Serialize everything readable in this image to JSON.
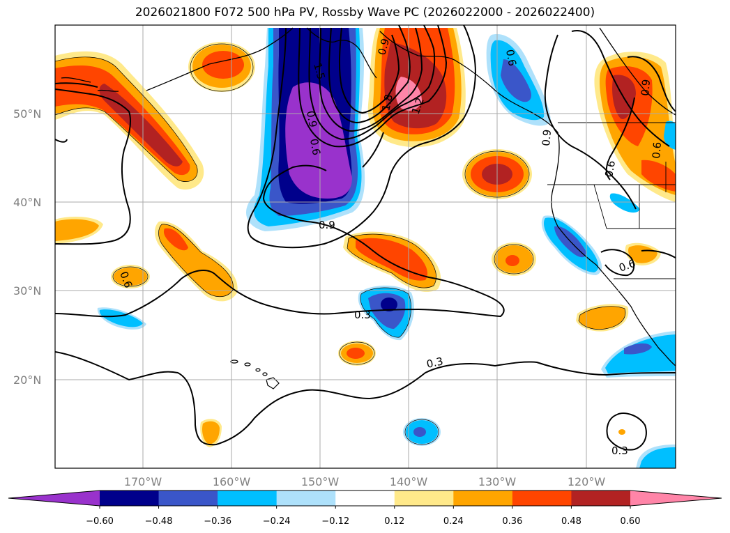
{
  "title": "2026021800 F072 500 hPa PV, Rossby Wave PC (2026022000 - 2026022400)",
  "lat_labels": [
    "50°N",
    "40°N",
    "30°N",
    "20°N"
  ],
  "lon_labels": [
    "170°W",
    "160°W",
    "150°W",
    "140°W",
    "130°W",
    "120°W"
  ],
  "contour_labels": [
    {
      "text": "1.5"
    },
    {
      "text": "0.9"
    },
    {
      "text": "0.6"
    },
    {
      "text": "1.8"
    },
    {
      "text": "1.2"
    },
    {
      "text": "0.9"
    },
    {
      "text": "0.3"
    },
    {
      "text": "0.3"
    },
    {
      "text": "0.3"
    },
    {
      "text": "0.6"
    },
    {
      "text": "0.6"
    },
    {
      "text": "0.6"
    },
    {
      "text": "0.9"
    },
    {
      "text": "0.9"
    },
    {
      "text": "0.6"
    },
    {
      "text": "0.6"
    },
    {
      "text": "0.9"
    }
  ],
  "colorbar": {
    "ticks": [
      "−0.60",
      "−0.48",
      "−0.36",
      "−0.24",
      "−0.12",
      "0.12",
      "0.24",
      "0.36",
      "0.48",
      "0.60"
    ],
    "colors": [
      "#9932cc",
      "#00008b",
      "#3a56c9",
      "#00bfff",
      "#aee1fb",
      "#ffffff",
      "#ffe98a",
      "#ffa500",
      "#ff4500",
      "#b22222",
      "#ff85a8"
    ]
  }
}
